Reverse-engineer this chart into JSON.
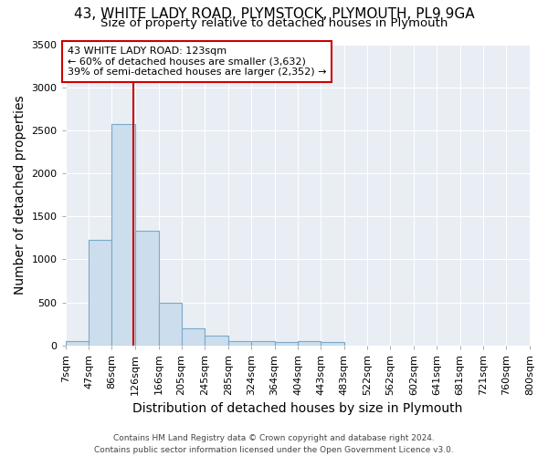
{
  "title_line1": "43, WHITE LADY ROAD, PLYMSTOCK, PLYMOUTH, PL9 9GA",
  "title_line2": "Size of property relative to detached houses in Plymouth",
  "xlabel": "Distribution of detached houses by size in Plymouth",
  "ylabel": "Number of detached properties",
  "footnote": "Contains HM Land Registry data © Crown copyright and database right 2024.\nContains public sector information licensed under the Open Government Licence v3.0.",
  "bin_edges": [
    7,
    47,
    86,
    126,
    166,
    205,
    245,
    285,
    324,
    364,
    404,
    443,
    483,
    522,
    562,
    602,
    641,
    681,
    721,
    760,
    800
  ],
  "bar_heights": [
    50,
    1230,
    2580,
    1330,
    490,
    200,
    110,
    50,
    50,
    35,
    50,
    40,
    0,
    0,
    0,
    0,
    0,
    0,
    0,
    0
  ],
  "bar_color": "#ccdded",
  "bar_edgecolor": "#7aaac8",
  "property_size": 123,
  "red_line_color": "#cc0000",
  "annotation_text": "43 WHITE LADY ROAD: 123sqm\n← 60% of detached houses are smaller (3,632)\n39% of semi-detached houses are larger (2,352) →",
  "annotation_box_edgecolor": "#cc0000",
  "annotation_box_facecolor": "#ffffff",
  "ylim": [
    0,
    3500
  ],
  "yticks": [
    0,
    500,
    1000,
    1500,
    2000,
    2500,
    3000,
    3500
  ],
  "background_color": "#ffffff",
  "plot_background_color": "#e8eef4",
  "grid_color": "#ffffff",
  "title_fontsize": 11,
  "subtitle_fontsize": 9.5,
  "axis_label_fontsize": 10,
  "tick_fontsize": 8,
  "footnote_fontsize": 6.5
}
